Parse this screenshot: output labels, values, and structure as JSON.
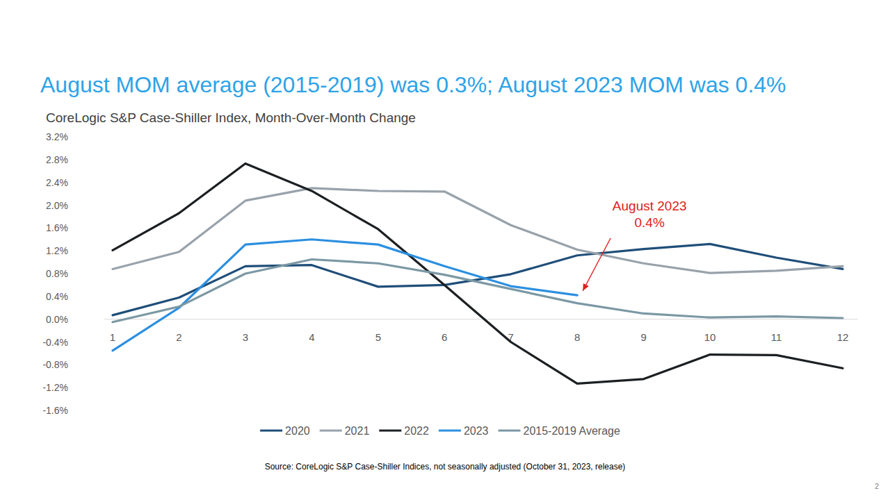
{
  "chart_data": {
    "type": "line",
    "title": "August MOM average (2015-2019) was 0.3%; August 2023 MOM was 0.4%",
    "subtitle": "CoreLogic S&P Case-Shiller Index, Month-Over-Month Change",
    "source": "Source: CoreLogic S&P Case-Shiller Indices, not seasonally adjusted (October 31, 2023, release)",
    "page_number": "2",
    "categories": [
      "1",
      "2",
      "3",
      "4",
      "5",
      "6",
      "7",
      "8",
      "9",
      "10",
      "11",
      "12"
    ],
    "series": [
      {
        "name": "2020",
        "color": "#1f4e79",
        "values": [
          0.07,
          0.38,
          0.93,
          0.95,
          0.57,
          0.6,
          0.79,
          1.12,
          1.23,
          1.32,
          1.08,
          0.88
        ]
      },
      {
        "name": "2021",
        "color": "#98a2ab",
        "values": [
          0.88,
          1.18,
          2.08,
          2.3,
          2.25,
          2.24,
          1.65,
          1.22,
          0.98,
          0.81,
          0.85,
          0.93
        ]
      },
      {
        "name": "2022",
        "color": "#1c1f22",
        "values": [
          1.21,
          1.86,
          2.73,
          2.25,
          1.58,
          0.6,
          -0.4,
          -1.13,
          -1.05,
          -0.62,
          -0.63,
          -0.86
        ]
      },
      {
        "name": "2023",
        "color": "#2b8fe0",
        "values": [
          -0.55,
          0.2,
          1.31,
          1.4,
          1.31,
          0.93,
          0.58,
          0.42,
          null,
          null,
          null,
          null
        ]
      },
      {
        "name": "2015-2019 Average",
        "color": "#7b98a4",
        "values": [
          -0.05,
          0.22,
          0.8,
          1.05,
          0.98,
          0.78,
          0.53,
          0.28,
          0.1,
          0.03,
          0.05,
          0.02
        ]
      }
    ],
    "ylim": [
      -1.6,
      3.2
    ],
    "yticks": [
      {
        "value": -1.6,
        "label": "-1.6%"
      },
      {
        "value": -1.2,
        "label": "-1.2%"
      },
      {
        "value": -0.8,
        "label": "-0.8%"
      },
      {
        "value": -0.4,
        "label": "-0.4%"
      },
      {
        "value": 0,
        "label": "0.0%"
      },
      {
        "value": 0.4,
        "label": "0.4%"
      },
      {
        "value": 0.8,
        "label": "0.8%"
      },
      {
        "value": 1.2,
        "label": "1.2%"
      },
      {
        "value": 1.6,
        "label": "1.6%"
      },
      {
        "value": 2.0,
        "label": "2.0%"
      },
      {
        "value": 2.4,
        "label": "2.4%"
      },
      {
        "value": 2.8,
        "label": "2.8%"
      },
      {
        "value": 3.2,
        "label": "3.2%"
      }
    ],
    "grid": false,
    "legend": "bottom",
    "annotations": [
      {
        "lines": [
          "August 2023",
          "0.4%"
        ],
        "category": "8",
        "value": 0.4,
        "color": "#e02020"
      }
    ]
  }
}
